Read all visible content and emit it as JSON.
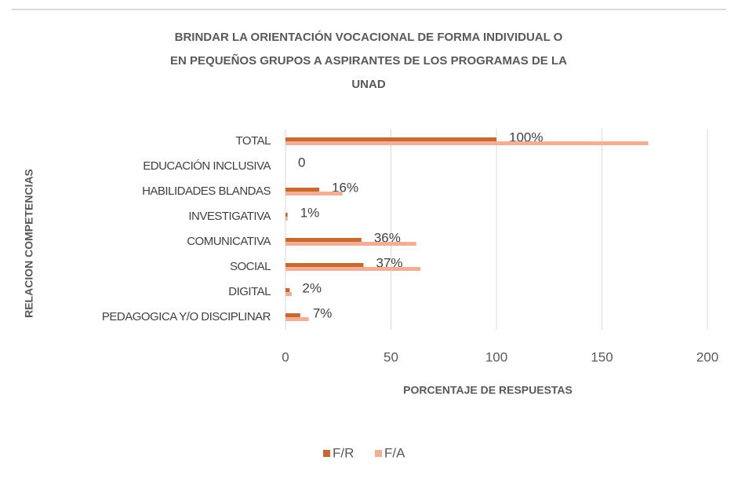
{
  "chart_data": {
    "type": "bar",
    "orientation": "horizontal",
    "title": [
      "BRINDAR LA ORIENTACIÓN VOCACIONAL DE FORMA INDIVIDUAL O",
      "EN PEQUEÑOS GRUPOS A ASPIRANTES DE LOS PROGRAMAS DE LA",
      "UNAD"
    ],
    "x_label": "PORCENTAJE DE RESPUESTAS",
    "y_label": "RELACION COMPETENCIAS",
    "categories": [
      "TOTAL",
      "EDUCACIÓN INCLUSIVA",
      "HABILIDADES BLANDAS",
      "INVESTIGATIVA",
      "COMUNICATIVA",
      "SOCIAL",
      "DIGITAL",
      "PEDAGOGICA Y/O DISCIPLINAR"
    ],
    "series": [
      {
        "name": "F/R",
        "color": "#c8692f",
        "values": [
          100,
          0,
          16,
          1,
          36,
          37,
          2,
          7
        ],
        "value_labels": [
          "100%",
          "0",
          "16%",
          "1%",
          "36%",
          "37%",
          "2%",
          "7%"
        ]
      },
      {
        "name": "F/A",
        "color": "#f3ae96",
        "values": [
          172,
          0,
          27,
          1,
          62,
          64,
          3,
          11
        ]
      }
    ],
    "xlim": [
      0,
      200
    ],
    "xticks": [
      0,
      50,
      100,
      150,
      200
    ],
    "grid": true,
    "legend": "bottom"
  }
}
